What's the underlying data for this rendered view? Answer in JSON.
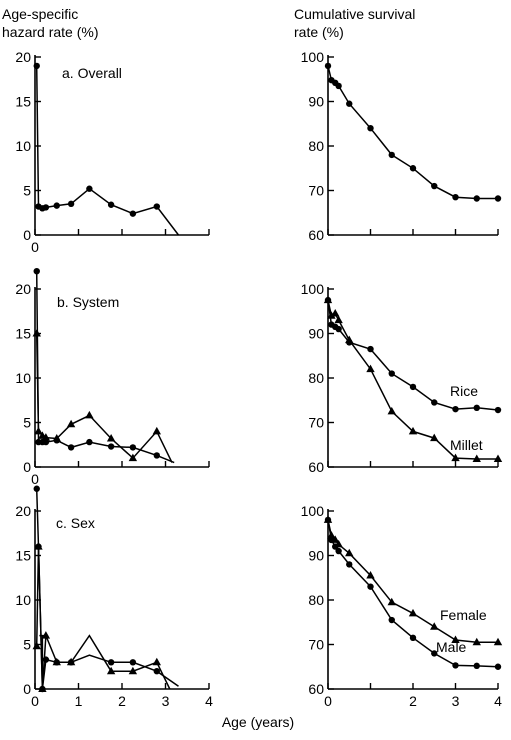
{
  "header": {
    "left_line1": "Age-specific",
    "left_line2": "hazard rate (%)",
    "right_line1": "Cumulative survival",
    "right_line2": "rate (%)"
  },
  "xlabel": "Age (years)",
  "chart_data": [
    {
      "id": "hazard-overall",
      "type": "line",
      "label": "a. Overall",
      "xlim": [
        0,
        4
      ],
      "ylim": [
        0,
        20
      ],
      "xticks": [
        {
          "v": 0,
          "t": "0"
        },
        {
          "v": 1,
          "t": ""
        },
        {
          "v": 2,
          "t": ""
        },
        {
          "v": 3,
          "t": ""
        },
        {
          "v": 4,
          "t": ""
        }
      ],
      "yticks": [
        {
          "v": 0,
          "t": "0"
        },
        {
          "v": 5,
          "t": "5"
        },
        {
          "v": 10,
          "t": "10"
        },
        {
          "v": 15,
          "t": "15"
        },
        {
          "v": 20,
          "t": "20"
        }
      ],
      "series": [
        {
          "marker": "circle",
          "x": [
            0.04,
            0.08,
            0.17,
            0.25,
            0.5,
            0.83,
            1.25,
            1.75,
            2.25,
            2.8,
            3.3
          ],
          "y": [
            19.0,
            3.2,
            3.0,
            3.1,
            3.3,
            3.5,
            5.2,
            3.4,
            2.4,
            3.2,
            0
          ],
          "markers": [
            true,
            true,
            true,
            true,
            true,
            true,
            true,
            true,
            true,
            true,
            false
          ]
        }
      ]
    },
    {
      "id": "survival-overall",
      "type": "line",
      "label": "",
      "xlim": [
        0,
        4
      ],
      "ylim": [
        60,
        100
      ],
      "xticks": [
        {
          "v": 0,
          "t": ""
        },
        {
          "v": 1,
          "t": ""
        },
        {
          "v": 2,
          "t": ""
        },
        {
          "v": 3,
          "t": ""
        },
        {
          "v": 4,
          "t": ""
        }
      ],
      "yticks": [
        {
          "v": 60,
          "t": "60"
        },
        {
          "v": 70,
          "t": "70"
        },
        {
          "v": 80,
          "t": "80"
        },
        {
          "v": 90,
          "t": "90"
        },
        {
          "v": 100,
          "t": "100"
        }
      ],
      "series": [
        {
          "marker": "circle",
          "x": [
            0,
            0.08,
            0.17,
            0.25,
            0.5,
            1.0,
            1.5,
            2.0,
            2.5,
            3.0,
            3.5,
            4.0
          ],
          "y": [
            98,
            94.8,
            94.2,
            93.5,
            89.5,
            84,
            78,
            75,
            71,
            68.5,
            68.2,
            68.2
          ]
        }
      ]
    },
    {
      "id": "hazard-system",
      "type": "line",
      "label": "b. System",
      "xlim": [
        0,
        4
      ],
      "ylim": [
        0,
        20
      ],
      "xticks": [
        {
          "v": 0,
          "t": "0"
        },
        {
          "v": 1,
          "t": ""
        },
        {
          "v": 2,
          "t": ""
        },
        {
          "v": 3,
          "t": ""
        },
        {
          "v": 4,
          "t": ""
        }
      ],
      "yticks": [
        {
          "v": 0,
          "t": "0"
        },
        {
          "v": 5,
          "t": "5"
        },
        {
          "v": 10,
          "t": "10"
        },
        {
          "v": 15,
          "t": "15"
        },
        {
          "v": 20,
          "t": "20"
        }
      ],
      "series": [
        {
          "name": "",
          "marker": "circle",
          "x": [
            0.04,
            0.08,
            0.17,
            0.25,
            0.5,
            0.83,
            1.25,
            1.75,
            2.25,
            2.8,
            3.2
          ],
          "y": [
            22.0,
            2.8,
            2.8,
            2.8,
            3.0,
            2.2,
            2.8,
            2.3,
            2.2,
            1.3,
            0.5
          ],
          "markers": [
            true,
            true,
            true,
            true,
            true,
            true,
            true,
            true,
            true,
            true,
            false
          ]
        },
        {
          "name": "",
          "marker": "triangle",
          "x": [
            0.04,
            0.08,
            0.17,
            0.25,
            0.5,
            0.83,
            1.25,
            1.75,
            2.25,
            2.8,
            3.15
          ],
          "y": [
            15.0,
            4.0,
            3.5,
            3.3,
            3.2,
            4.8,
            5.8,
            3.2,
            1.0,
            4.0,
            0.5
          ],
          "markers": [
            true,
            true,
            true,
            true,
            true,
            true,
            true,
            true,
            true,
            true,
            false
          ]
        }
      ]
    },
    {
      "id": "survival-system",
      "type": "line",
      "label": "",
      "xlim": [
        0,
        4
      ],
      "ylim": [
        60,
        100
      ],
      "xticks": [
        {
          "v": 0,
          "t": ""
        },
        {
          "v": 1,
          "t": ""
        },
        {
          "v": 2,
          "t": ""
        },
        {
          "v": 3,
          "t": ""
        },
        {
          "v": 4,
          "t": ""
        }
      ],
      "yticks": [
        {
          "v": 60,
          "t": "60"
        },
        {
          "v": 70,
          "t": "70"
        },
        {
          "v": 80,
          "t": "80"
        },
        {
          "v": 90,
          "t": "90"
        },
        {
          "v": 100,
          "t": "100"
        }
      ],
      "series": [
        {
          "name": "Rice",
          "marker": "circle",
          "x": [
            0,
            0.08,
            0.17,
            0.25,
            0.5,
            1.0,
            1.5,
            2.0,
            2.5,
            3.0,
            3.5,
            4.0
          ],
          "y": [
            97.5,
            92,
            91.5,
            91,
            88,
            86.5,
            81,
            78,
            74.5,
            73,
            73.3,
            72.8
          ]
        },
        {
          "name": "Millet",
          "marker": "triangle",
          "x": [
            0,
            0.08,
            0.17,
            0.25,
            0.5,
            1.0,
            1.5,
            2.0,
            2.5,
            3.0,
            3.5,
            4.0
          ],
          "y": [
            97.5,
            94,
            94.5,
            93,
            88.5,
            82,
            72.5,
            68,
            66.5,
            62,
            61.8,
            61.8
          ]
        }
      ]
    },
    {
      "id": "hazard-sex",
      "type": "line",
      "label": "c. Sex",
      "xlim": [
        0,
        4
      ],
      "ylim": [
        0,
        20
      ],
      "xticks": [
        {
          "v": 0,
          "t": "0"
        },
        {
          "v": 1,
          "t": "1"
        },
        {
          "v": 2,
          "t": "2"
        },
        {
          "v": 3,
          "t": "3"
        },
        {
          "v": 4,
          "t": "4"
        }
      ],
      "yticks": [
        {
          "v": 0,
          "t": "0"
        },
        {
          "v": 5,
          "t": "5"
        },
        {
          "v": 10,
          "t": "10"
        },
        {
          "v": 15,
          "t": "15"
        },
        {
          "v": 20,
          "t": "20"
        }
      ],
      "series": [
        {
          "name": "",
          "marker": "circle",
          "x": [
            0.04,
            0.08,
            0.17,
            0.25,
            0.5,
            0.83,
            1.25,
            1.75,
            2.25,
            2.8,
            3.3
          ],
          "y": [
            22.5,
            16.0,
            0,
            3.3,
            3.0,
            3.0,
            3.8,
            3.0,
            3.0,
            2.0,
            0.3
          ],
          "markers": [
            true,
            true,
            true,
            true,
            true,
            true,
            false,
            true,
            true,
            true,
            false
          ]
        },
        {
          "name": "",
          "marker": "triangle",
          "x": [
            0.04,
            0.08,
            0.17,
            0.25,
            0.5,
            0.83,
            1.25,
            1.75,
            2.25,
            2.8,
            3.1
          ],
          "y": [
            4.8,
            16.0,
            0,
            6.0,
            3.0,
            3.0,
            6.0,
            2.0,
            2.0,
            3.0,
            0
          ],
          "markers": [
            true,
            true,
            true,
            true,
            true,
            true,
            false,
            true,
            true,
            true,
            false
          ]
        }
      ]
    },
    {
      "id": "survival-sex",
      "type": "line",
      "label": "",
      "xlim": [
        0,
        4
      ],
      "ylim": [
        60,
        100
      ],
      "xticks": [
        {
          "v": 0,
          "t": "0"
        },
        {
          "v": 1,
          "t": ""
        },
        {
          "v": 2,
          "t": "2"
        },
        {
          "v": 3,
          "t": "3"
        },
        {
          "v": 4,
          "t": "4"
        }
      ],
      "yticks": [
        {
          "v": 60,
          "t": "60"
        },
        {
          "v": 70,
          "t": "70"
        },
        {
          "v": 80,
          "t": "80"
        },
        {
          "v": 90,
          "t": "90"
        },
        {
          "v": 100,
          "t": "100"
        }
      ],
      "series": [
        {
          "name": "Female",
          "marker": "triangle",
          "x": [
            0,
            0.08,
            0.17,
            0.25,
            0.5,
            1.0,
            1.5,
            2.0,
            2.5,
            3.0,
            3.5,
            4.0
          ],
          "y": [
            98,
            94.5,
            93.5,
            92.5,
            90.5,
            85.5,
            79.5,
            77,
            74,
            71,
            70.5,
            70.5
          ]
        },
        {
          "name": "Male",
          "marker": "circle",
          "x": [
            0,
            0.08,
            0.17,
            0.25,
            0.5,
            1.0,
            1.5,
            2.0,
            2.5,
            3.0,
            3.5,
            4.0
          ],
          "y": [
            98,
            93.5,
            92,
            91,
            88,
            83,
            75.5,
            71.5,
            68,
            65.3,
            65.2,
            65
          ]
        }
      ]
    }
  ]
}
